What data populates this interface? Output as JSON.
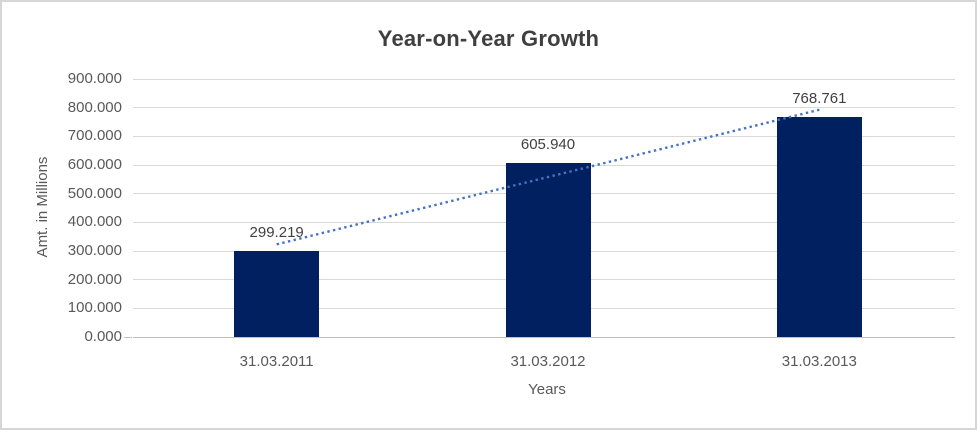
{
  "chart_data": {
    "type": "bar",
    "title": "Year-on-Year Growth",
    "xlabel": "Years",
    "ylabel": "Amt. in Millions",
    "categories": [
      "31.03.2011",
      "31.03.2012",
      "31.03.2013"
    ],
    "values": [
      299.219,
      605.94,
      768.761
    ],
    "data_labels": [
      "299.219",
      "605.940",
      "768.761"
    ],
    "ylim": [
      0,
      900
    ],
    "y_tick_step": 100,
    "y_tick_labels": [
      "0.000",
      "100.000",
      "200.000",
      "300.000",
      "400.000",
      "500.000",
      "600.000",
      "700.000",
      "800.000",
      "900.000"
    ],
    "grid": true,
    "legend": false,
    "legend_position": "none",
    "bar_color": "#012060",
    "trendline": {
      "type": "linear",
      "style": "dotted",
      "color": "#4472c4"
    },
    "colors": {
      "title": "#3f3f3f",
      "tick_labels": "#595959",
      "data_labels": "#404040",
      "gridline": "#d9d9d9",
      "axis_line": "#bfbfbf",
      "background": "#ffffff",
      "border": "#d6d6d6"
    }
  }
}
